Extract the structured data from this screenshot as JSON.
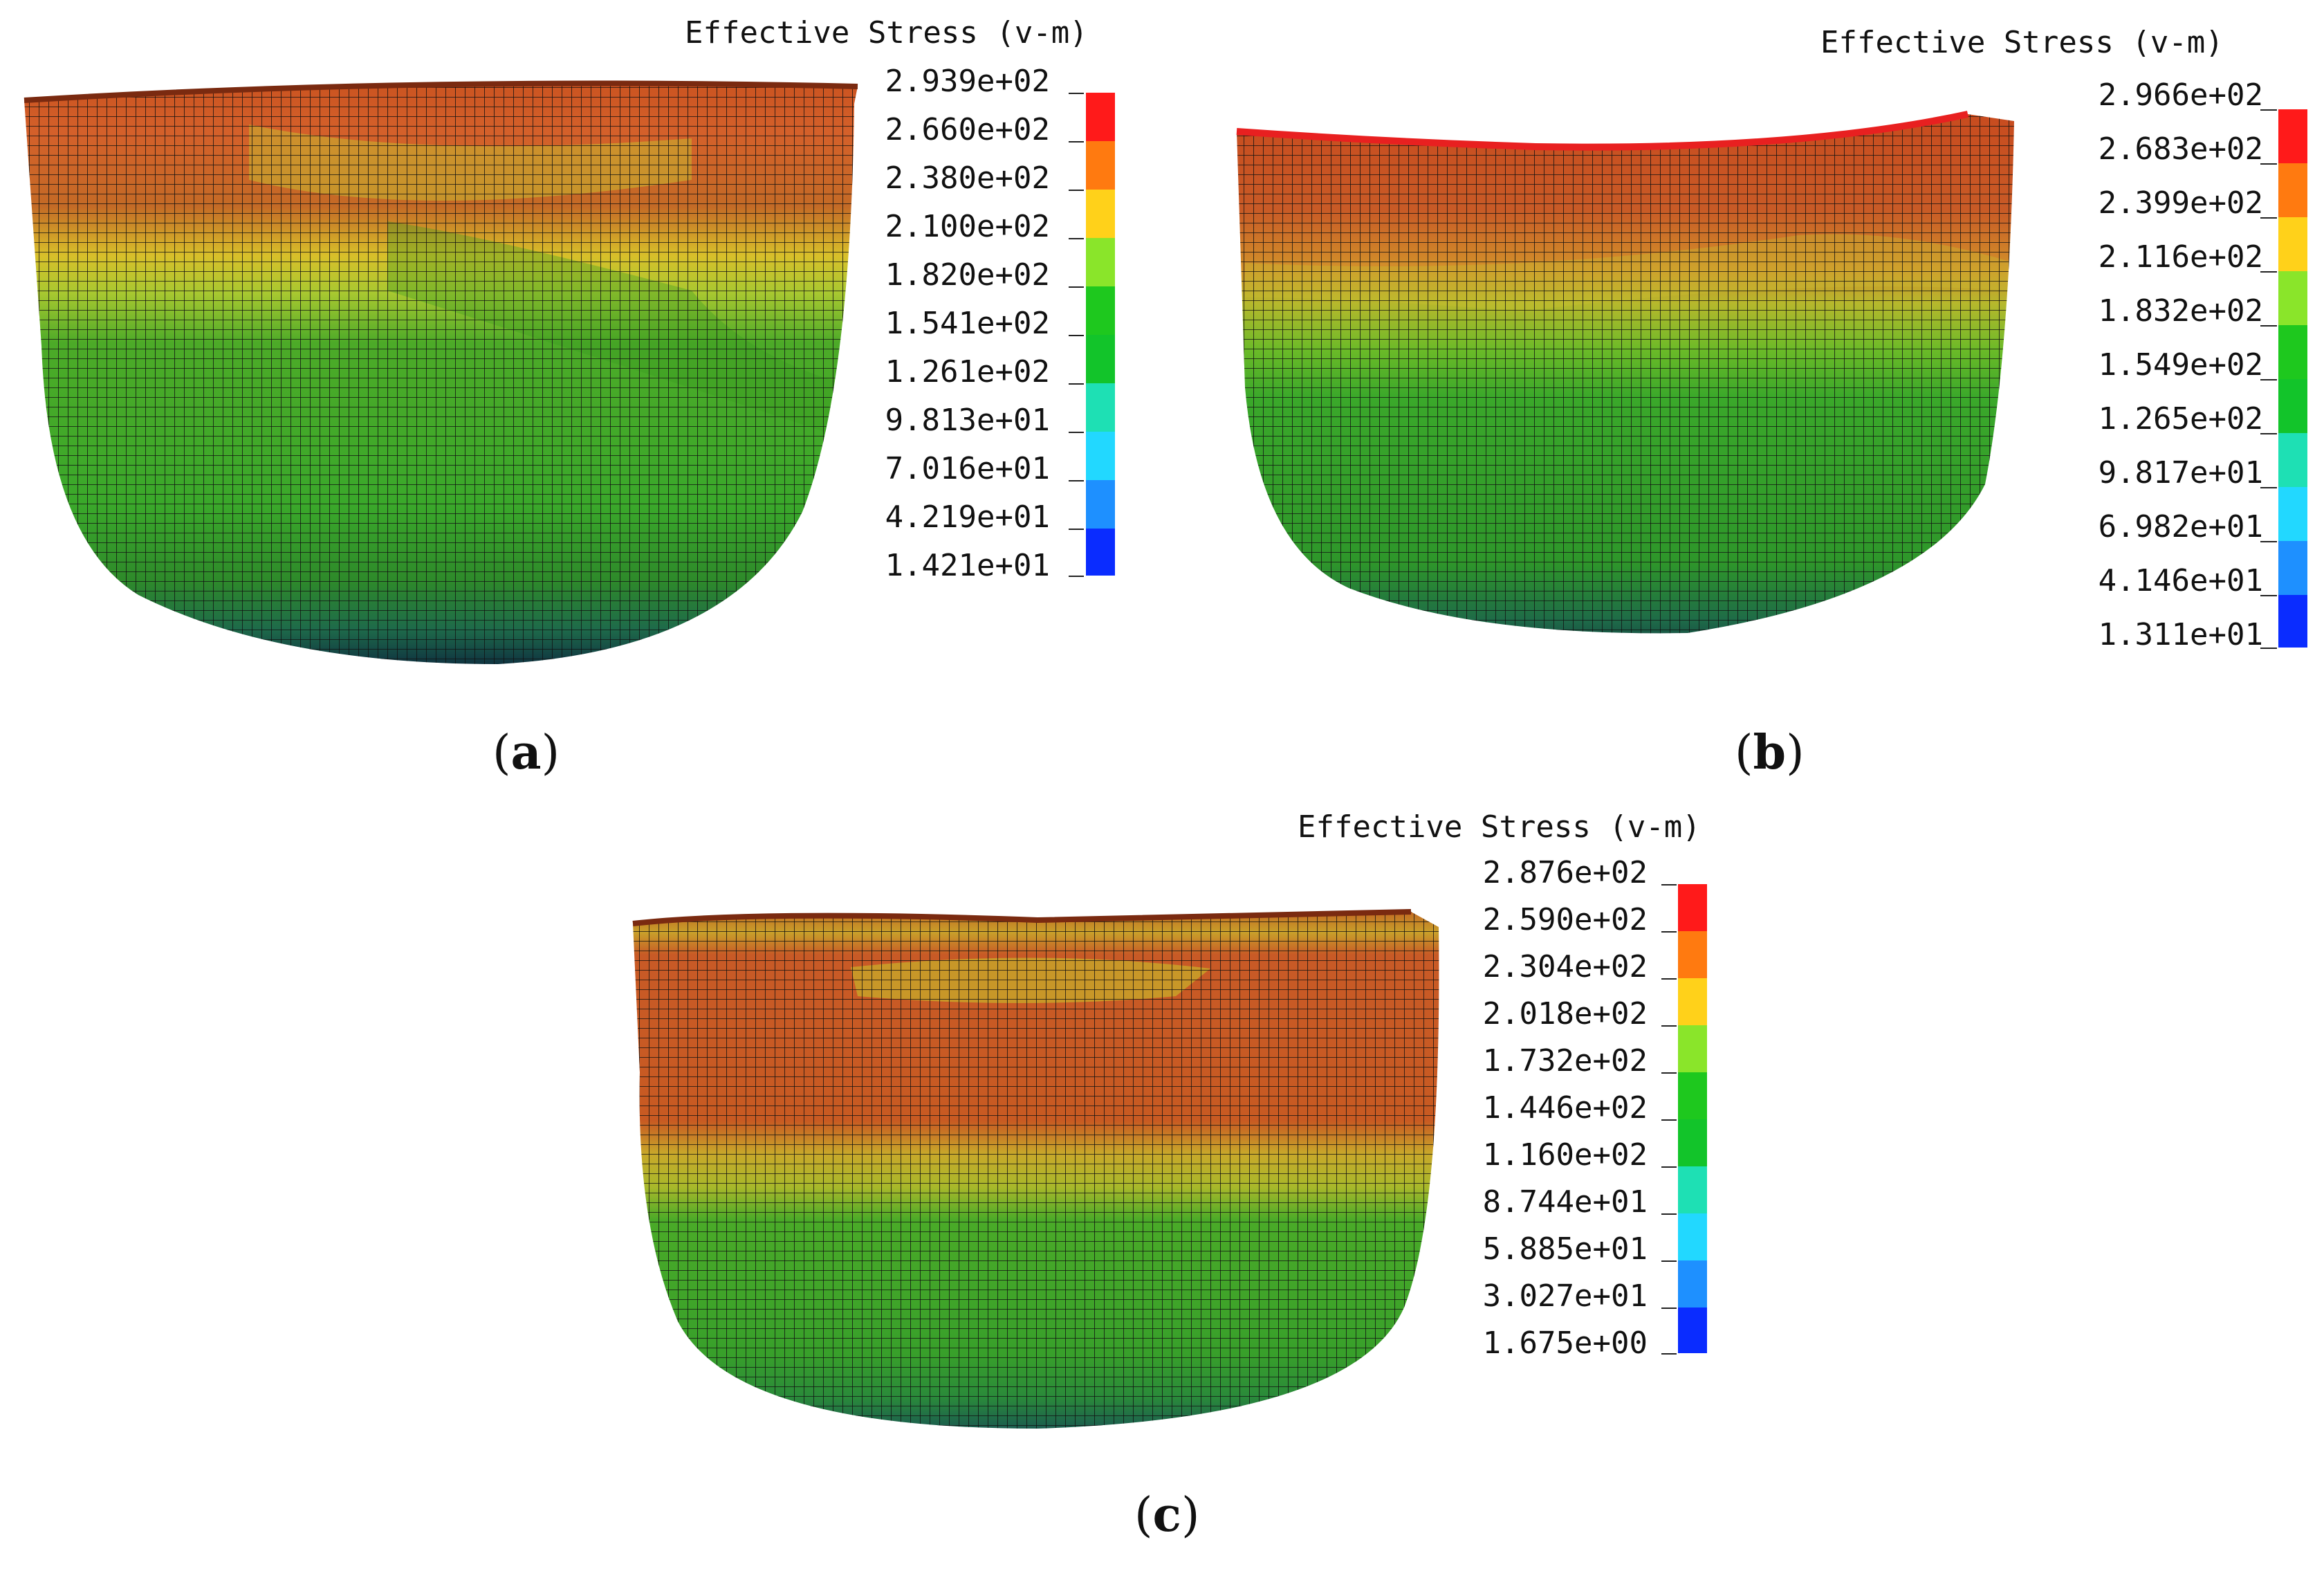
{
  "figure": {
    "panels": [
      {
        "id": "a",
        "caption_letter": "a",
        "legend": {
          "title": "Effective Stress (v-m)",
          "values": [
            "2.939e+02",
            "2.660e+02",
            "2.380e+02",
            "2.100e+02",
            "1.820e+02",
            "1.541e+02",
            "1.261e+02",
            "9.813e+01",
            "7.016e+01",
            "4.219e+01",
            "1.421e+01"
          ],
          "colors": [
            "#ff1a1a",
            "#ff7a10",
            "#ffd11a",
            "#8ae52a",
            "#1ec81e",
            "#12c42a",
            "#1ee0b4",
            "#22d8ff",
            "#1e90ff",
            "#0a2cff"
          ]
        }
      },
      {
        "id": "b",
        "caption_letter": "b",
        "legend": {
          "title": "Effective Stress (v-m)",
          "values": [
            "2.966e+02",
            "2.683e+02",
            "2.399e+02",
            "2.116e+02",
            "1.832e+02",
            "1.549e+02",
            "1.265e+02",
            "9.817e+01",
            "6.982e+01",
            "4.146e+01",
            "1.311e+01"
          ],
          "colors": [
            "#ff1a1a",
            "#ff7a10",
            "#ffd11a",
            "#8ae52a",
            "#1ec81e",
            "#12c42a",
            "#1ee0b4",
            "#22d8ff",
            "#1e90ff",
            "#0a2cff"
          ]
        }
      },
      {
        "id": "c",
        "caption_letter": "c",
        "legend": {
          "title": "Effective Stress (v-m)",
          "values": [
            "2.876e+02",
            "2.590e+02",
            "2.304e+02",
            "2.018e+02",
            "1.732e+02",
            "1.446e+02",
            "1.160e+02",
            "8.744e+01",
            "5.885e+01",
            "3.027e+01",
            "1.675e+00"
          ],
          "colors": [
            "#ff1a1a",
            "#ff7a10",
            "#ffd11a",
            "#8ae52a",
            "#1ec81e",
            "#12c42a",
            "#1ee0b4",
            "#22d8ff",
            "#1e90ff",
            "#0a2cff"
          ]
        }
      }
    ]
  }
}
